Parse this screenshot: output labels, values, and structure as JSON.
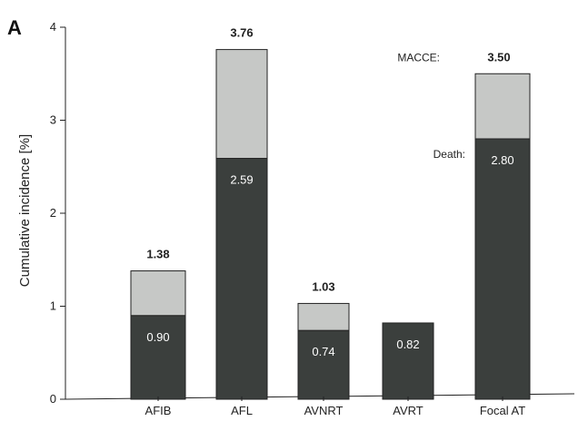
{
  "panel_label": "A",
  "chart_data": {
    "type": "bar",
    "stacked": true,
    "categories": [
      "AFIB",
      "AFL",
      "AVNRT",
      "AVRT",
      "Focal AT"
    ],
    "series": [
      {
        "name": "Death:",
        "values": [
          0.9,
          2.59,
          0.74,
          0.82,
          2.8
        ],
        "labels": [
          "0.90",
          "2.59",
          "0.74",
          "0.82",
          "2.80"
        ],
        "color": "#3b3f3d"
      },
      {
        "name": "MACCE:",
        "values": [
          0.48,
          1.17,
          0.29,
          0.0,
          0.7
        ],
        "color": "#c6c8c6"
      }
    ],
    "totals": [
      1.38,
      3.76,
      1.03,
      null,
      3.5
    ],
    "total_labels": [
      "1.38",
      "3.76",
      "1.03",
      "",
      "3.50"
    ],
    "ylabel": "Cumulative incidence [%]",
    "ylim": [
      0,
      4
    ],
    "yticks": [
      0,
      1,
      2,
      3,
      4
    ],
    "grid": false
  }
}
